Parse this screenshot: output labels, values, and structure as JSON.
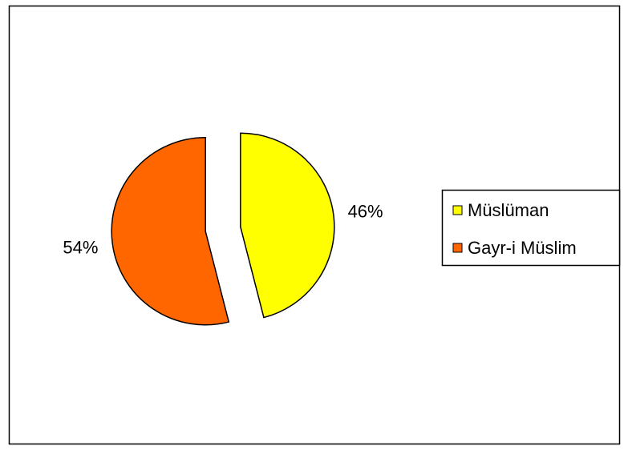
{
  "chart_data": {
    "type": "pie",
    "categories": [
      "Müslüman",
      "Gayr-i Müslim"
    ],
    "values": [
      46,
      54
    ],
    "data_labels": [
      "46%",
      "54%"
    ],
    "colors": [
      "#FFFF00",
      "#FF6600"
    ],
    "exploded": true,
    "legend_position": "right",
    "title": ""
  }
}
